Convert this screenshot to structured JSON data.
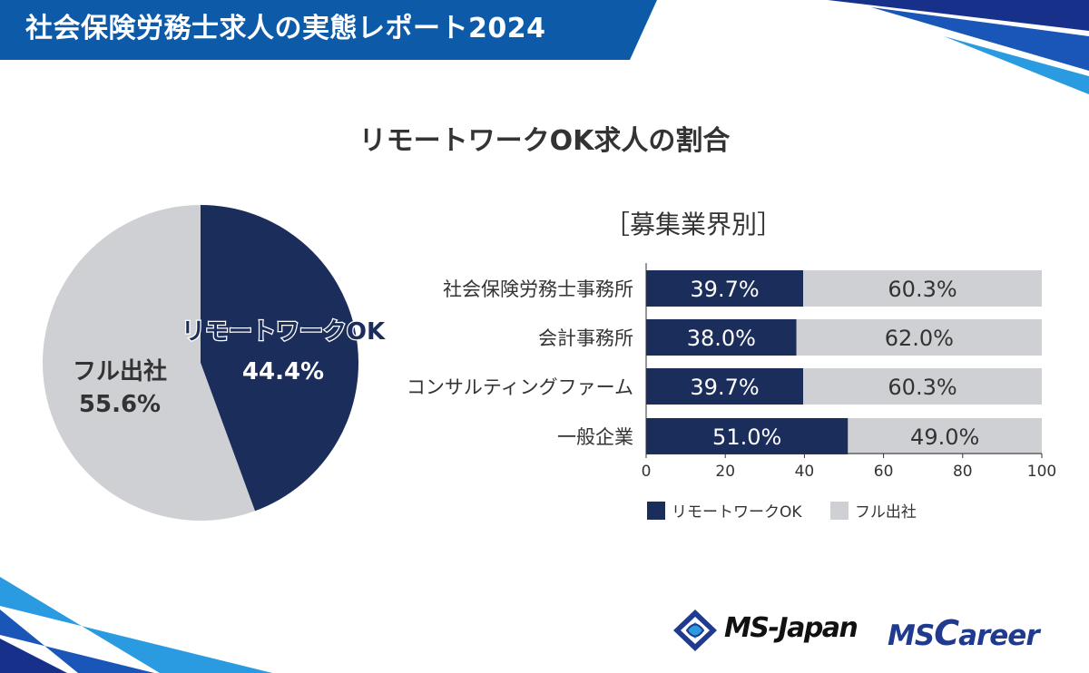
{
  "header": {
    "title": "社会保険労務士求人の実態レポート2024",
    "colors": {
      "band": "#0d5aa9",
      "accent_dark": "#17318a",
      "accent_light": "#2a9be0"
    }
  },
  "title": "リモートワークOK求人の割合",
  "subtitle": "［募集業界別］",
  "colors": {
    "remote": "#1b2d5b",
    "office": "#cfd0d3"
  },
  "chart_data": [
    {
      "type": "pie",
      "slices": [
        {
          "label": "リモートワークOK",
          "value": 44.4,
          "display": "44.4%",
          "color": "#1b2d5b"
        },
        {
          "label": "フル出社",
          "value": 55.6,
          "display": "55.6%",
          "color": "#cfd0d3"
        }
      ]
    },
    {
      "type": "bar",
      "orientation": "horizontal",
      "stacked": true,
      "title": "［募集業界別］",
      "categories": [
        "社会保険労務士事務所",
        "会計事務所",
        "コンサルティングファーム",
        "一般企業"
      ],
      "series": [
        {
          "name": "リモートワークOK",
          "values": [
            39.7,
            38.0,
            39.7,
            51.0
          ],
          "labels": [
            "39.7%",
            "38.0%",
            "39.7%",
            "51.0%"
          ],
          "color": "#1b2d5b"
        },
        {
          "name": "フル出社",
          "values": [
            60.3,
            62.0,
            60.3,
            49.0
          ],
          "labels": [
            "60.3%",
            "62.0%",
            "60.3%",
            "49.0%"
          ],
          "color": "#cfd0d3"
        }
      ],
      "xlim": [
        0,
        100
      ],
      "xticks": [
        "0",
        "20",
        "40",
        "60",
        "80",
        "100"
      ],
      "legend": "bottom"
    }
  ],
  "legend": {
    "items": [
      {
        "label": "リモートワークOK",
        "color": "#1b2d5b"
      },
      {
        "label": "フル出社",
        "color": "#cfd0d3"
      }
    ]
  },
  "logos": {
    "msjapan": "MS-Japan",
    "mscareer": {
      "prefix": "MS",
      "c": "C",
      "rest": "areer"
    }
  }
}
